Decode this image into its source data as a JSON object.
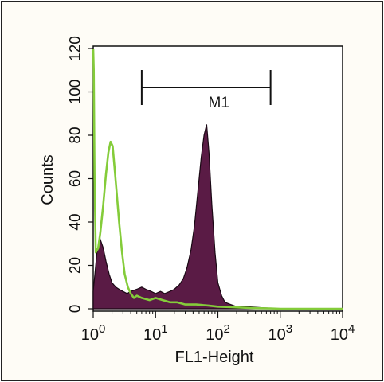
{
  "chart_data": {
    "type": "area",
    "ylabel": "Counts",
    "xlabel": "FL1-Height",
    "x_scale": "log",
    "xlim": [
      1,
      10000
    ],
    "ylim": [
      0,
      120
    ],
    "y_ticks": [
      "0",
      "20",
      "40",
      "60",
      "80",
      "100",
      "120"
    ],
    "x_ticks": [
      {
        "base": "10",
        "exp": "0",
        "value": 1
      },
      {
        "base": "10",
        "exp": "1",
        "value": 10
      },
      {
        "base": "10",
        "exp": "2",
        "value": 100
      },
      {
        "base": "10",
        "exp": "3",
        "value": 1000
      },
      {
        "base": "10",
        "exp": "4",
        "value": 10000
      }
    ],
    "gate": {
      "label": "M1",
      "x_start": 6,
      "x_end": 700
    },
    "series": [
      {
        "style": "filled",
        "color": "#5a1b45",
        "x": [
          1.0,
          1.15,
          1.3,
          1.45,
          1.6,
          1.8,
          2.0,
          2.3,
          2.6,
          3.0,
          3.5,
          4.0,
          5.0,
          6.0,
          7.0,
          8.5,
          10,
          12,
          14,
          17,
          20,
          24,
          28,
          32,
          37,
          42,
          48,
          54,
          60,
          66,
          72,
          80,
          90,
          100,
          115,
          130,
          160,
          200,
          300,
          500,
          700,
          800
        ],
        "y": [
          8,
          26,
          32,
          28,
          22,
          16,
          12,
          10,
          9,
          8,
          7,
          8,
          9,
          10,
          9,
          8,
          7,
          8,
          7,
          8,
          9,
          11,
          14,
          19,
          27,
          38,
          55,
          70,
          80,
          85,
          72,
          48,
          26,
          12,
          6,
          3,
          2,
          1,
          1,
          0.5,
          0.3,
          0
        ]
      },
      {
        "style": "line",
        "color": "#84cc3a",
        "x": [
          1.0,
          1.02,
          1.05,
          1.1,
          1.2,
          1.3,
          1.45,
          1.6,
          1.75,
          1.9,
          2.05,
          2.2,
          2.4,
          2.6,
          2.9,
          3.2,
          3.6,
          4.0,
          4.5,
          5.0,
          6.0,
          8.0,
          10,
          13,
          17,
          22,
          30,
          45,
          70,
          100,
          150,
          250,
          400,
          700,
          1000,
          10000
        ],
        "y": [
          120,
          110,
          60,
          26,
          28,
          35,
          48,
          62,
          72,
          77,
          75,
          65,
          52,
          40,
          26,
          16,
          10,
          7,
          5,
          6,
          5,
          4,
          5,
          4,
          3,
          3,
          2,
          2,
          1.5,
          1,
          0.8,
          0.5,
          0.3,
          0.2,
          0,
          0
        ]
      }
    ]
  }
}
